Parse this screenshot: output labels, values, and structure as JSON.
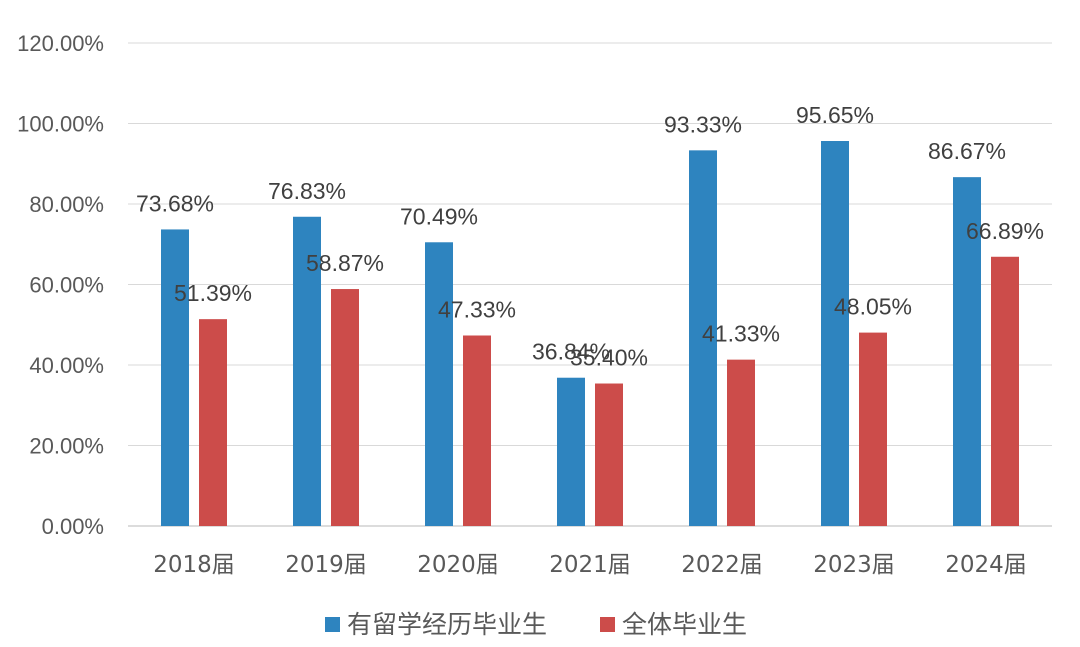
{
  "chart_data": {
    "type": "bar",
    "title": "",
    "xlabel": "",
    "ylabel": "",
    "ylim": [
      0,
      120
    ],
    "yticks": [
      "0.00%",
      "20.00%",
      "40.00%",
      "60.00%",
      "80.00%",
      "100.00%",
      "120.00%"
    ],
    "grid": true,
    "legend_position": "bottom",
    "categories": [
      "2018届",
      "2019届",
      "2020届",
      "2021届",
      "2022届",
      "2023届",
      "2024届"
    ],
    "series": [
      {
        "name": "有留学经历毕业生",
        "color": "#2e84bf",
        "values": [
          73.68,
          76.83,
          70.49,
          36.84,
          93.33,
          95.65,
          86.67
        ],
        "labels": [
          "73.68%",
          "76.83%",
          "70.49%",
          "36.84%",
          "93.33%",
          "95.65%",
          "86.67%"
        ]
      },
      {
        "name": "全体毕业生",
        "color": "#cc4c4a",
        "values": [
          51.39,
          58.87,
          47.33,
          35.4,
          41.33,
          48.05,
          66.89
        ],
        "labels": [
          "51.39%",
          "58.87%",
          "47.33%",
          "35.40%",
          "41.33%",
          "48.05%",
          "66.89%"
        ]
      }
    ]
  }
}
